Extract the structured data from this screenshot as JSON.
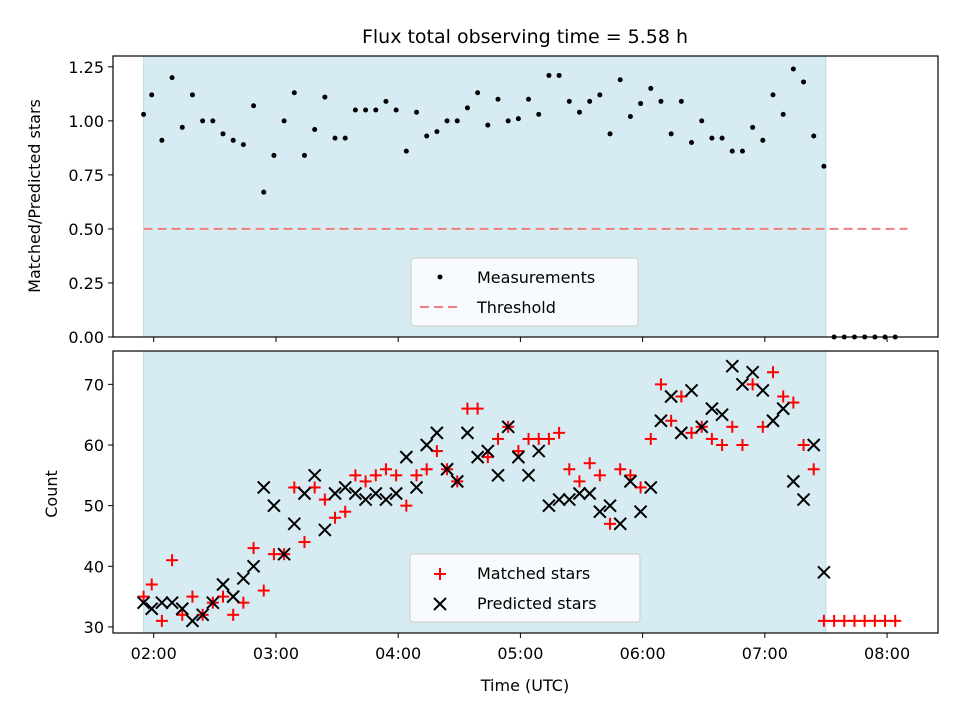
{
  "chart_data": [
    {
      "type": "scatter",
      "title": "Flux total observing time = 5.58 h",
      "xlabel": "",
      "ylabel": "Matched/Predicted stars",
      "ylim": [
        0,
        1.3
      ],
      "yticks": [
        "0.00",
        "0.25",
        "0.50",
        "0.75",
        "1.00",
        "1.25"
      ],
      "grid": false,
      "legend_position": "bottom-center",
      "shaded_interval": [
        "01:55",
        "07:30"
      ],
      "threshold": {
        "name": "Threshold",
        "value": 0.5,
        "x_range": [
          "01:55",
          "08:10"
        ]
      },
      "series": [
        {
          "name": "Measurements",
          "x": [
            "01:55",
            "01:59",
            "02:04",
            "02:09",
            "02:14",
            "02:19",
            "02:24",
            "02:29",
            "02:34",
            "02:39",
            "02:44",
            "02:49",
            "02:54",
            "02:59",
            "03:04",
            "03:09",
            "03:14",
            "03:19",
            "03:24",
            "03:29",
            "03:34",
            "03:39",
            "03:44",
            "03:49",
            "03:54",
            "03:59",
            "04:04",
            "04:09",
            "04:14",
            "04:19",
            "04:24",
            "04:29",
            "04:34",
            "04:39",
            "04:44",
            "04:49",
            "04:54",
            "04:59",
            "05:04",
            "05:09",
            "05:14",
            "05:19",
            "05:24",
            "05:29",
            "05:34",
            "05:39",
            "05:44",
            "05:49",
            "05:54",
            "05:59",
            "06:04",
            "06:09",
            "06:14",
            "06:19",
            "06:24",
            "06:29",
            "06:34",
            "06:39",
            "06:44",
            "06:49",
            "06:54",
            "06:59",
            "07:04",
            "07:09",
            "07:14",
            "07:19",
            "07:24",
            "07:29",
            "07:34",
            "07:39",
            "07:44",
            "07:49",
            "07:54",
            "07:59",
            "08:04"
          ],
          "y": [
            1.03,
            1.12,
            0.91,
            1.2,
            0.97,
            1.12,
            1.0,
            1.0,
            0.94,
            0.91,
            0.89,
            1.07,
            0.67,
            0.84,
            1.0,
            1.13,
            0.84,
            0.96,
            1.11,
            0.92,
            0.92,
            1.05,
            1.05,
            1.05,
            1.09,
            1.05,
            0.86,
            1.04,
            0.93,
            0.95,
            1.0,
            1.0,
            1.06,
            1.13,
            0.98,
            1.1,
            1.0,
            1.01,
            1.1,
            1.03,
            1.21,
            1.21,
            1.09,
            1.04,
            1.09,
            1.12,
            0.94,
            1.19,
            1.02,
            1.08,
            1.15,
            1.09,
            0.94,
            1.09,
            0.9,
            1.0,
            0.92,
            0.92,
            0.86,
            0.86,
            0.97,
            0.91,
            1.12,
            1.03,
            1.24,
            1.18,
            0.93,
            0.79,
            0,
            0,
            0,
            0,
            0,
            0,
            0
          ]
        }
      ]
    },
    {
      "type": "scatter",
      "title": "",
      "xlabel": "Time (UTC)",
      "ylabel": "Count",
      "ylim": [
        29,
        75.5
      ],
      "yticks": [
        "30",
        "40",
        "50",
        "60",
        "70"
      ],
      "xlim": [
        "01:40",
        "08:25"
      ],
      "xticks": [
        "02:00",
        "03:00",
        "04:00",
        "05:00",
        "06:00",
        "07:00",
        "08:00"
      ],
      "grid": false,
      "legend_position": "bottom-center",
      "shaded_interval": [
        "01:55",
        "07:30"
      ],
      "series": [
        {
          "name": "Matched stars",
          "color": "#ff0000",
          "marker": "plus",
          "x": [
            "01:55",
            "01:59",
            "02:04",
            "02:09",
            "02:14",
            "02:19",
            "02:24",
            "02:29",
            "02:34",
            "02:39",
            "02:44",
            "02:49",
            "02:54",
            "02:59",
            "03:04",
            "03:09",
            "03:14",
            "03:19",
            "03:24",
            "03:29",
            "03:34",
            "03:39",
            "03:44",
            "03:49",
            "03:54",
            "03:59",
            "04:04",
            "04:09",
            "04:14",
            "04:19",
            "04:24",
            "04:29",
            "04:34",
            "04:39",
            "04:44",
            "04:49",
            "04:54",
            "04:59",
            "05:04",
            "05:09",
            "05:14",
            "05:19",
            "05:24",
            "05:29",
            "05:34",
            "05:39",
            "05:44",
            "05:49",
            "05:54",
            "05:59",
            "06:04",
            "06:09",
            "06:14",
            "06:19",
            "06:24",
            "06:29",
            "06:34",
            "06:39",
            "06:44",
            "06:49",
            "06:54",
            "06:59",
            "07:04",
            "07:09",
            "07:14",
            "07:19",
            "07:24",
            "07:29",
            "07:34",
            "07:39",
            "07:44",
            "07:49",
            "07:54",
            "07:59",
            "08:04"
          ],
          "y": [
            35,
            37,
            31,
            41,
            32,
            35,
            32,
            34,
            35,
            32,
            34,
            43,
            36,
            42,
            42,
            53,
            44,
            53,
            51,
            48,
            49,
            55,
            54,
            55,
            56,
            55,
            50,
            55,
            56,
            59,
            56,
            54,
            66,
            66,
            58,
            61,
            63,
            59,
            61,
            61,
            61,
            62,
            56,
            54,
            57,
            55,
            47,
            56,
            55,
            53,
            61,
            70,
            64,
            68,
            62,
            63,
            61,
            60,
            63,
            60,
            70,
            63,
            72,
            68,
            67,
            60,
            56,
            31,
            31,
            31,
            31,
            31,
            31,
            31,
            31
          ]
        },
        {
          "name": "Predicted stars",
          "color": "#000000",
          "marker": "x",
          "x": [
            "01:55",
            "01:59",
            "02:04",
            "02:09",
            "02:14",
            "02:19",
            "02:24",
            "02:29",
            "02:34",
            "02:39",
            "02:44",
            "02:49",
            "02:54",
            "02:59",
            "03:04",
            "03:09",
            "03:14",
            "03:19",
            "03:24",
            "03:29",
            "03:34",
            "03:39",
            "03:44",
            "03:49",
            "03:54",
            "03:59",
            "04:04",
            "04:09",
            "04:14",
            "04:19",
            "04:24",
            "04:29",
            "04:34",
            "04:39",
            "04:44",
            "04:49",
            "04:54",
            "04:59",
            "05:04",
            "05:09",
            "05:14",
            "05:19",
            "05:24",
            "05:29",
            "05:34",
            "05:39",
            "05:44",
            "05:49",
            "05:54",
            "05:59",
            "06:04",
            "06:09",
            "06:14",
            "06:19",
            "06:24",
            "06:29",
            "06:34",
            "06:39",
            "06:44",
            "06:49",
            "06:54",
            "06:59",
            "07:04",
            "07:09",
            "07:14",
            "07:19",
            "07:24",
            "07:29"
          ],
          "y": [
            34,
            33,
            34,
            34,
            33,
            31,
            32,
            34,
            37,
            35,
            38,
            40,
            53,
            50,
            42,
            47,
            52,
            55,
            46,
            52,
            53,
            52,
            51,
            52,
            51,
            52,
            58,
            53,
            60,
            62,
            56,
            54,
            62,
            58,
            59,
            55,
            63,
            58,
            55,
            59,
            50,
            51,
            51,
            52,
            52,
            49,
            50,
            47,
            54,
            49,
            53,
            64,
            68,
            62,
            69,
            63,
            66,
            65,
            73,
            70,
            72,
            69,
            64,
            66,
            54,
            51,
            60,
            39
          ]
        }
      ]
    }
  ]
}
